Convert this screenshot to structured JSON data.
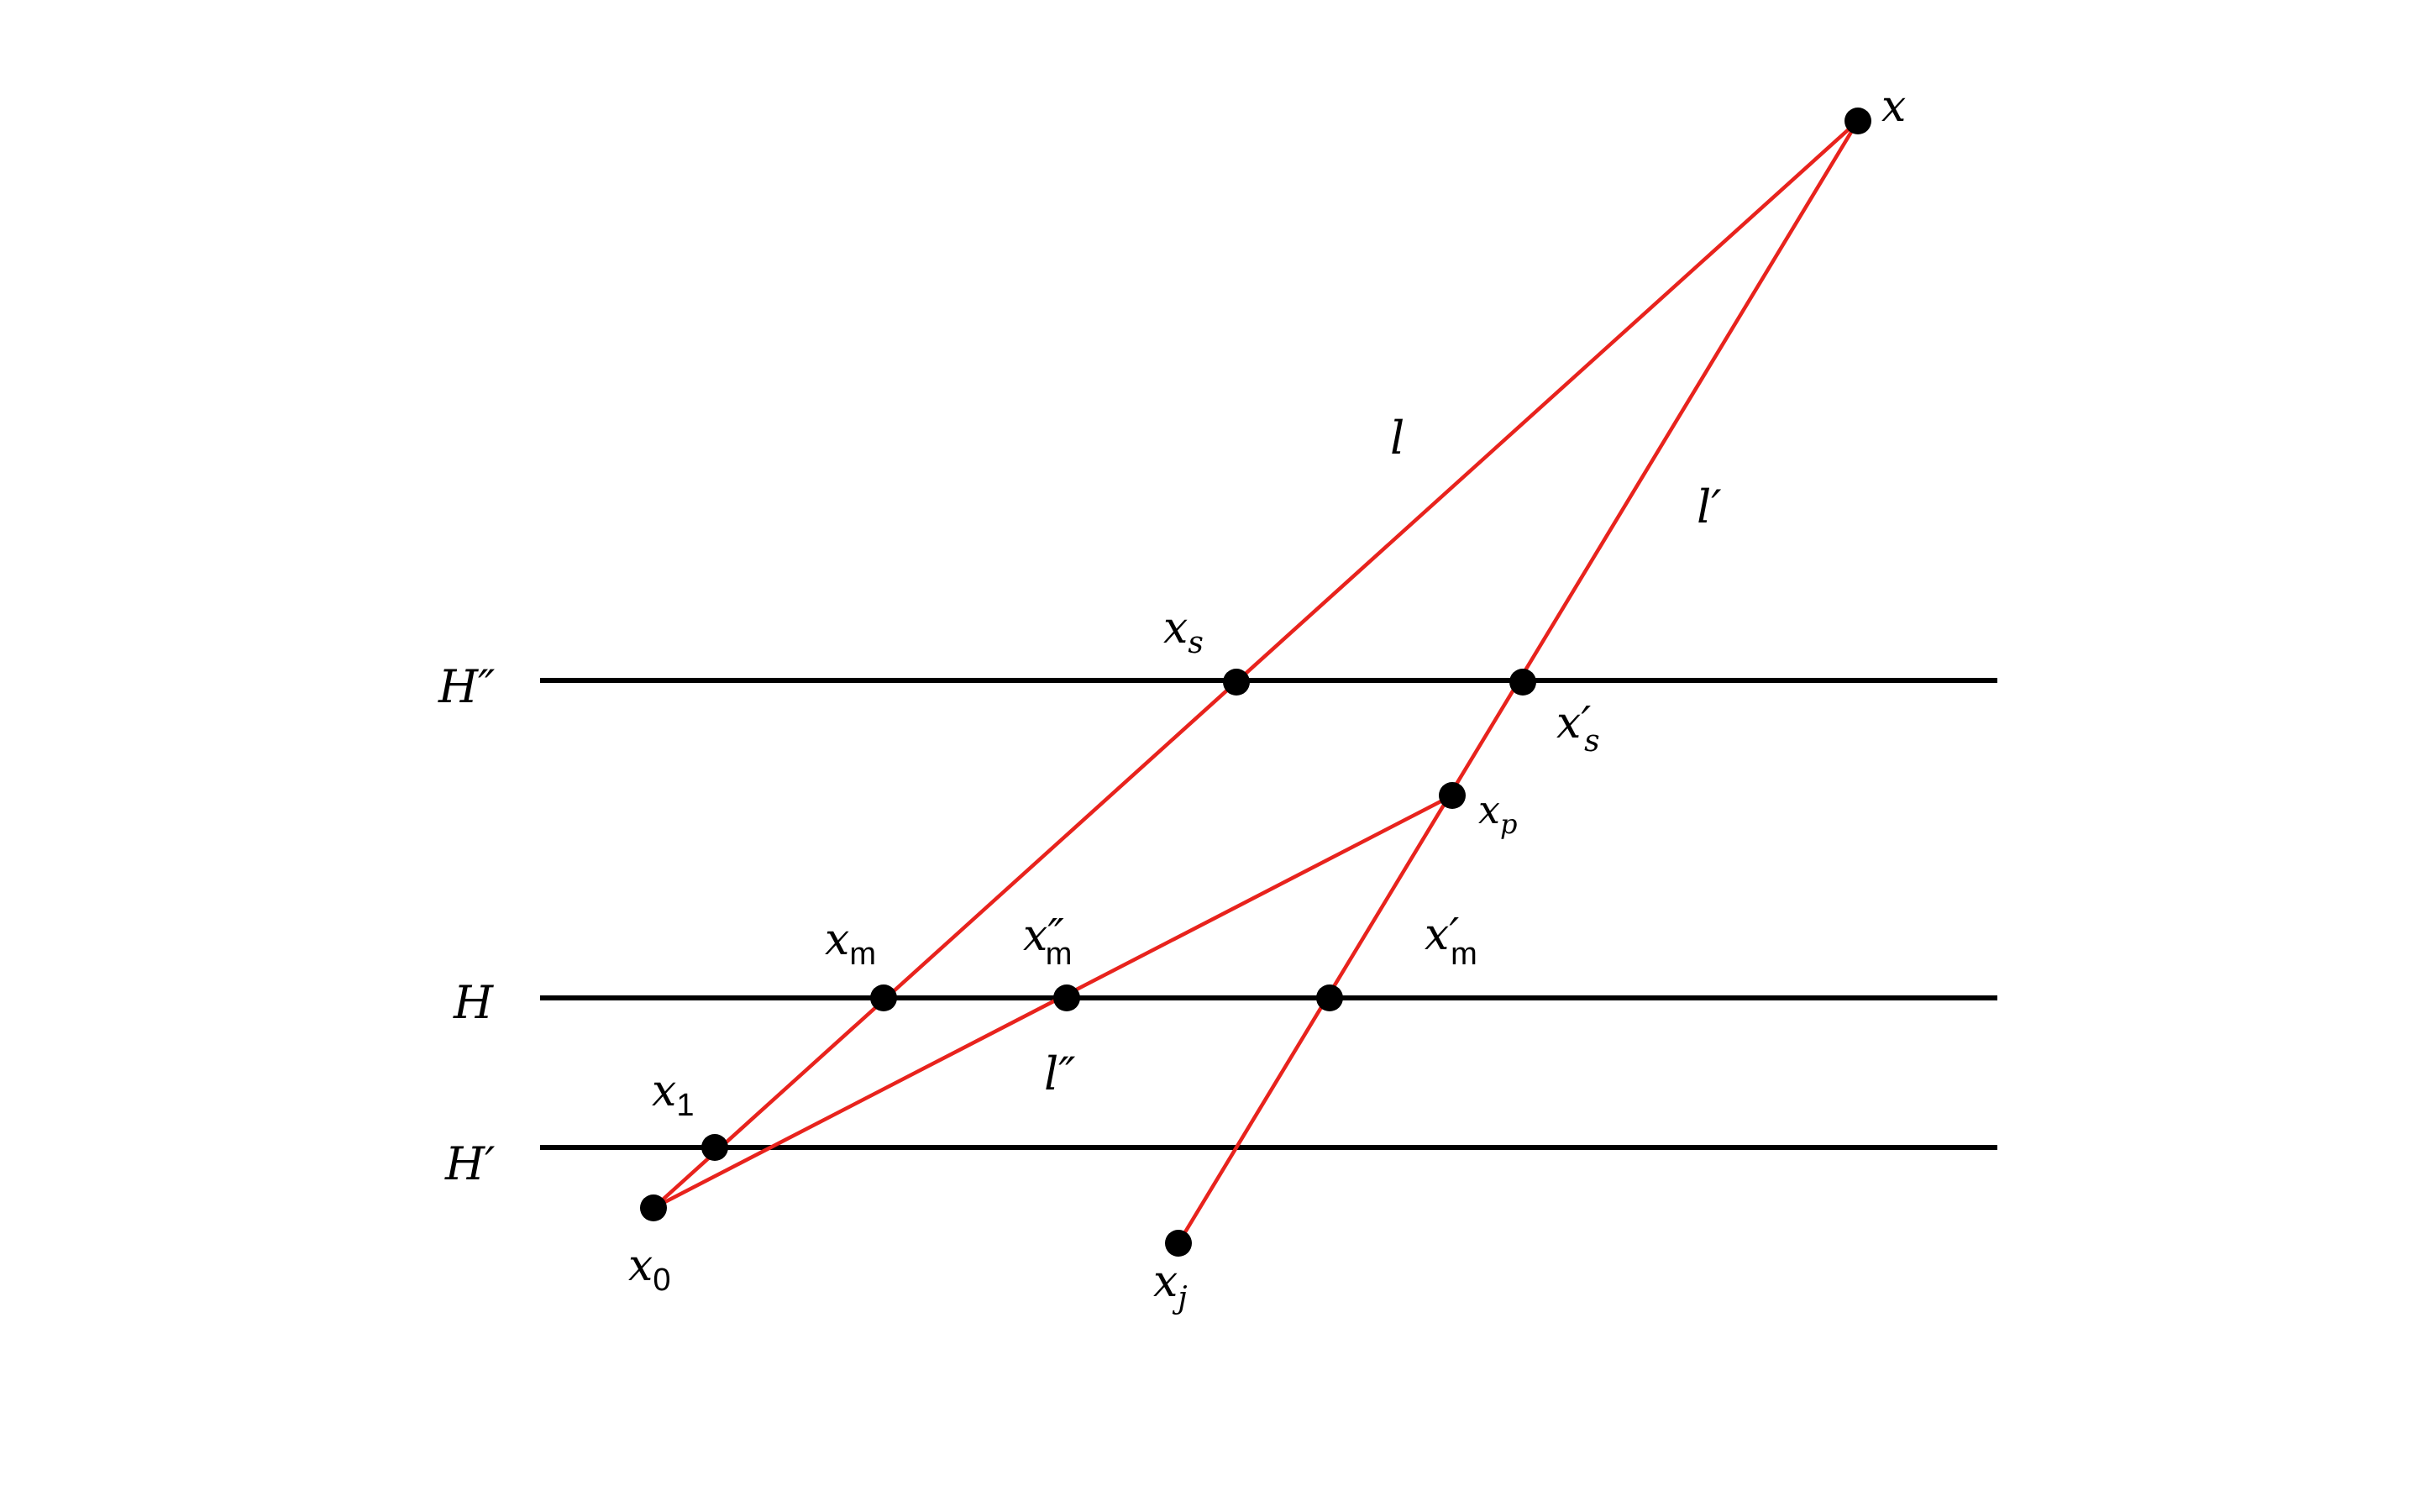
{
  "diagram": {
    "hyperplane_labels": {
      "H2": "H″",
      "H": "H",
      "H1": "H′"
    },
    "line_labels": {
      "l": "l",
      "l1": "l′",
      "l2": "l″"
    },
    "point_labels": {
      "x": {
        "base": "x",
        "sub": ""
      },
      "xs": {
        "base": "x",
        "sub": "s"
      },
      "xs1": {
        "base": "x′",
        "sub": "s"
      },
      "xp": {
        "base": "x",
        "sub": "p"
      },
      "xm": {
        "base": "x",
        "sub": "m"
      },
      "xm2": {
        "base": "x″",
        "sub": "m"
      },
      "xm1": {
        "base": "x′",
        "sub": "m"
      },
      "x1": {
        "base": "x",
        "sub": "1"
      },
      "x0": {
        "base": "x",
        "sub": "0"
      },
      "xj": {
        "base": "x",
        "sub": "j"
      }
    },
    "colors": {
      "segment": "#e8231d",
      "hyperplane": "#000000",
      "point": "#000000"
    }
  }
}
